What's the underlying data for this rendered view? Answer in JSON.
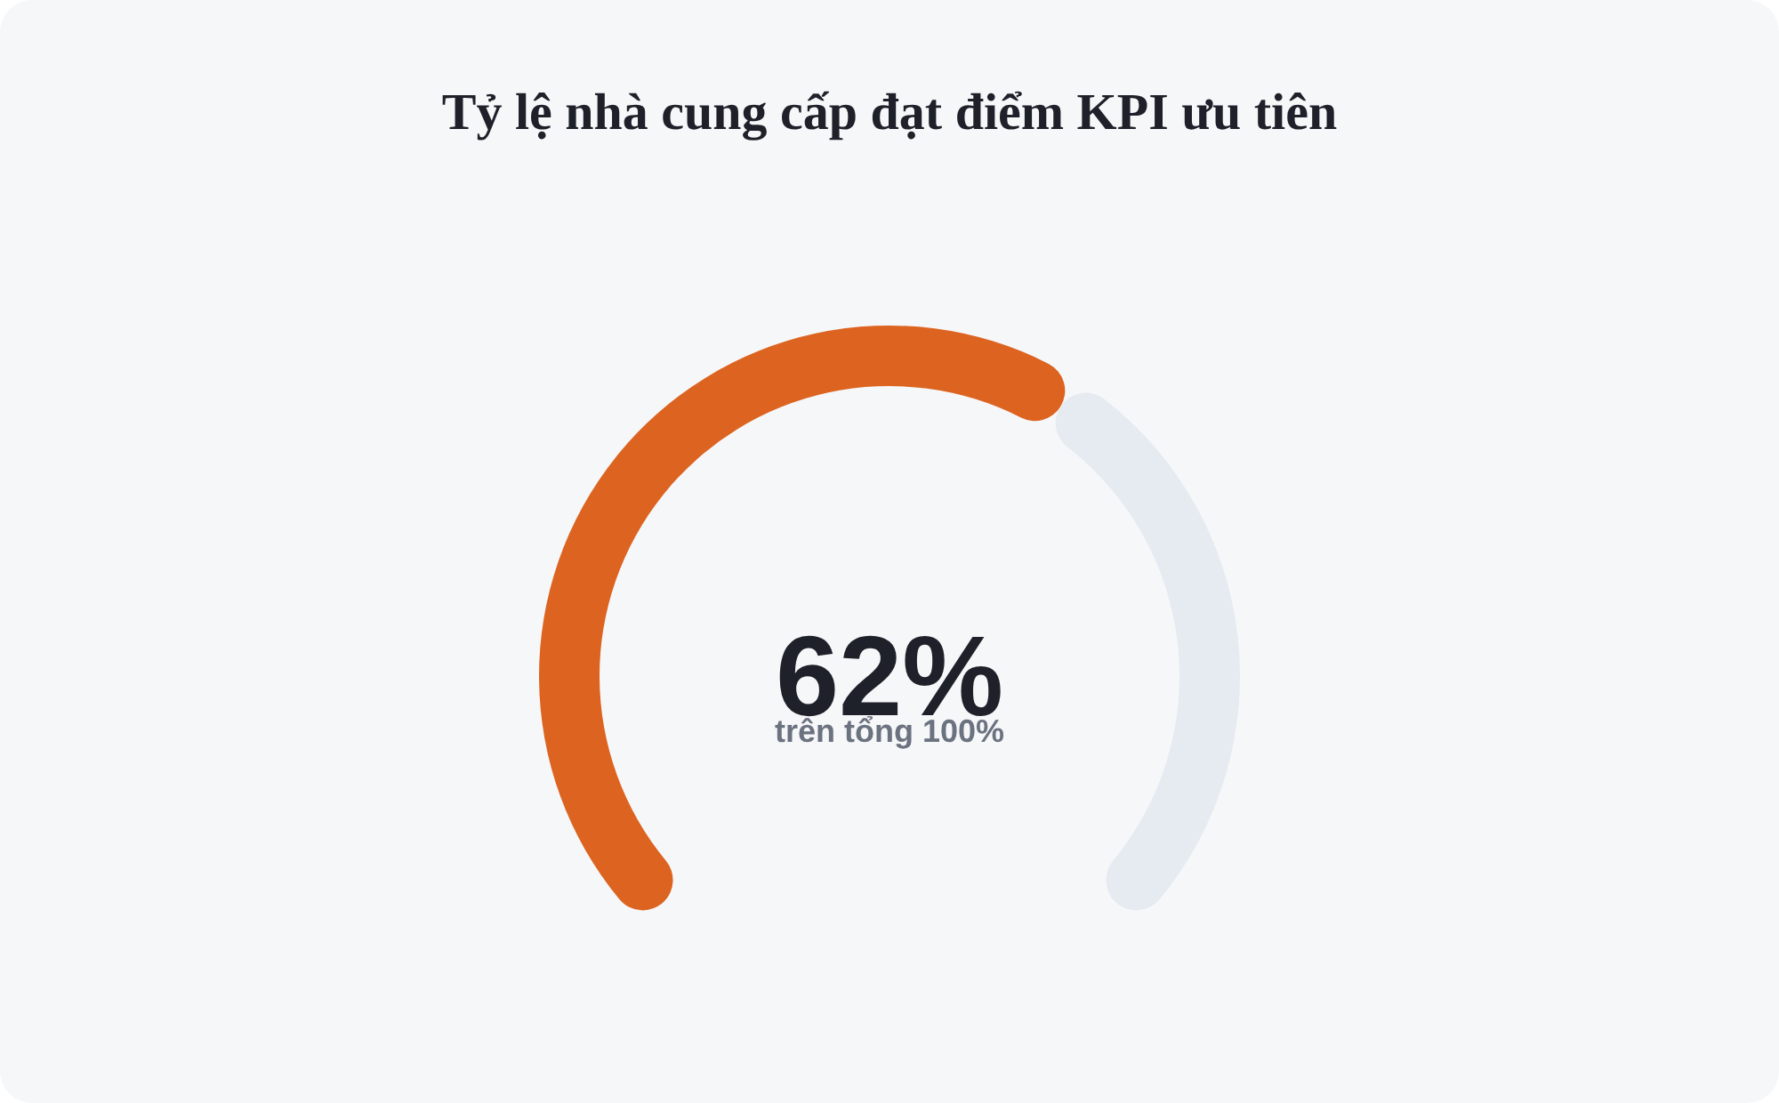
{
  "chart_data": {
    "type": "donut",
    "title": "Tỷ lệ nhà cung cấp đạt điểm KPI ưu tiên",
    "categories": [
      null,
      null
    ],
    "values": [
      62,
      38
    ],
    "colors": [
      "#dc6420",
      "#e6ebf1"
    ],
    "value_labels": [
      "62%",
      null
    ],
    "annotations": [
      "trên tổng 100%"
    ]
  }
}
